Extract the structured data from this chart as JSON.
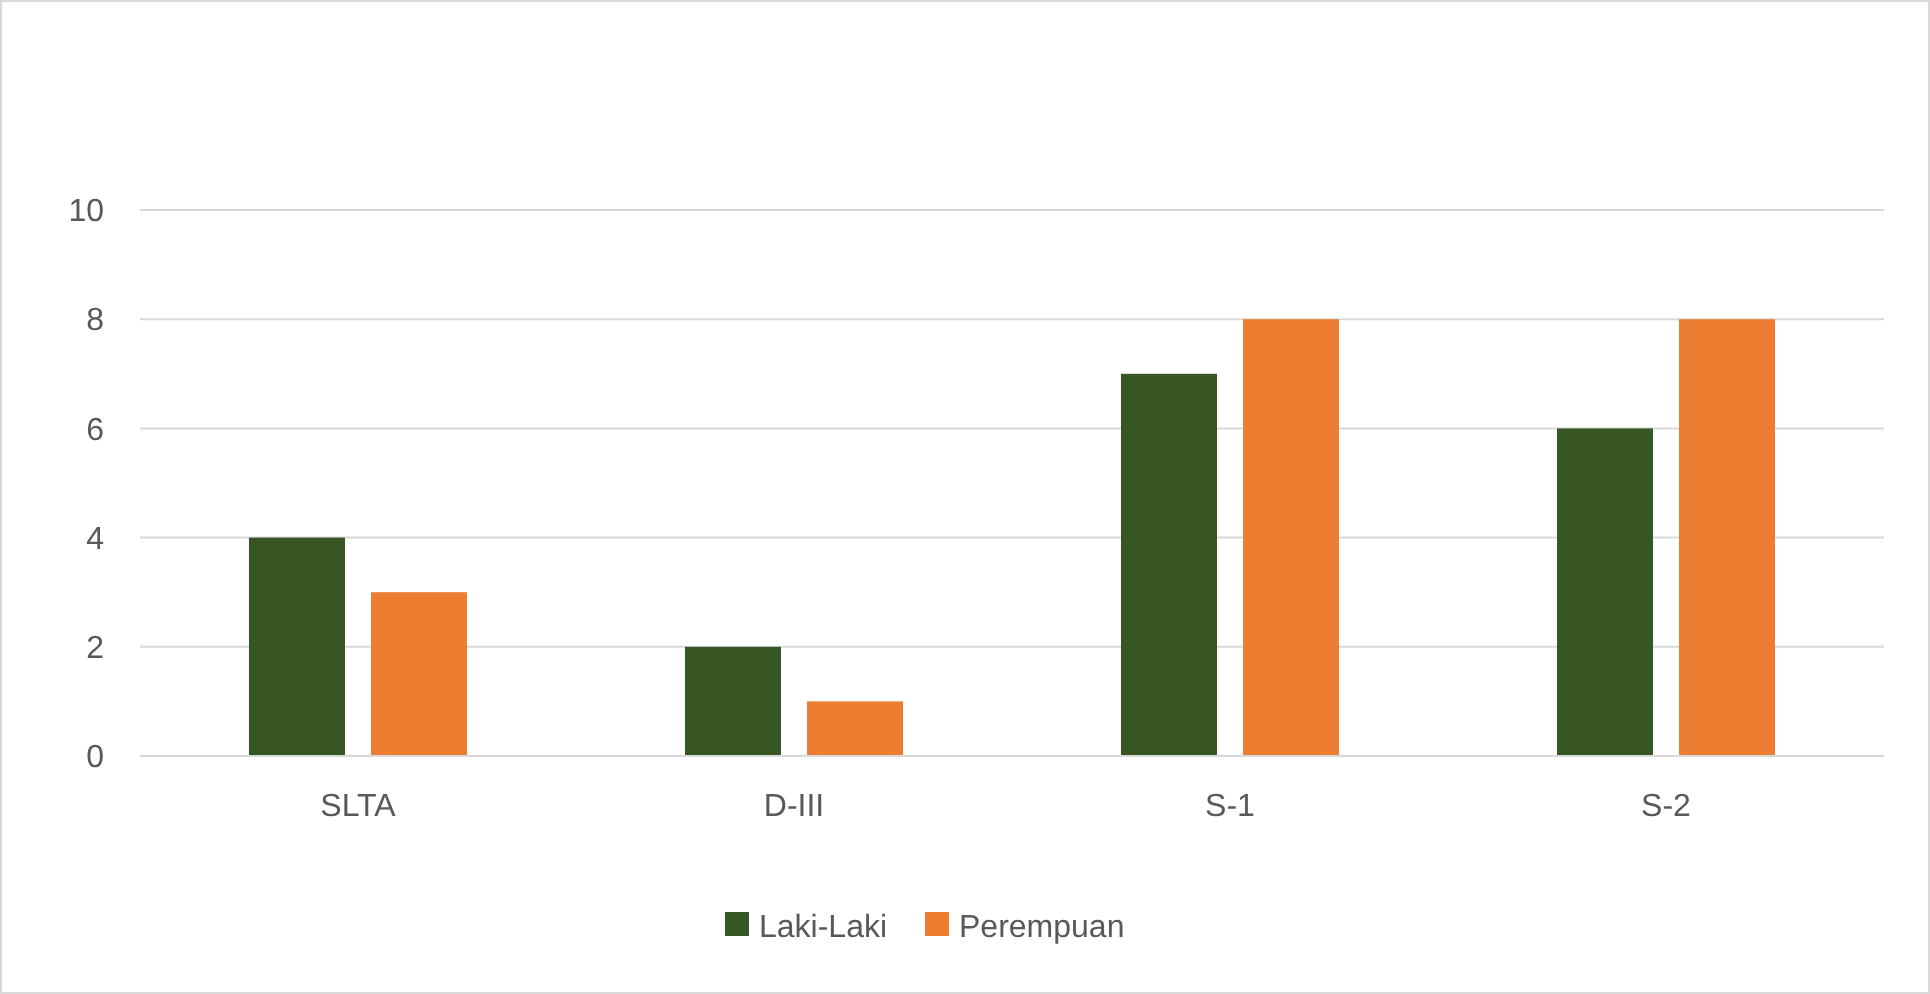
{
  "chart_data": {
    "type": "bar",
    "categories": [
      "SLTA",
      "D-III",
      "S-1",
      "S-2"
    ],
    "series": [
      {
        "name": "Laki-Laki",
        "color": "#375623",
        "values": [
          4,
          2,
          7,
          6
        ]
      },
      {
        "name": "Perempuan",
        "color": "#ed7d31",
        "values": [
          3,
          1,
          8,
          8
        ]
      }
    ],
    "ylim": [
      0,
      10
    ],
    "yticks": [
      0,
      2,
      4,
      6,
      8,
      10
    ],
    "grid": "y",
    "legend": "bottom"
  }
}
